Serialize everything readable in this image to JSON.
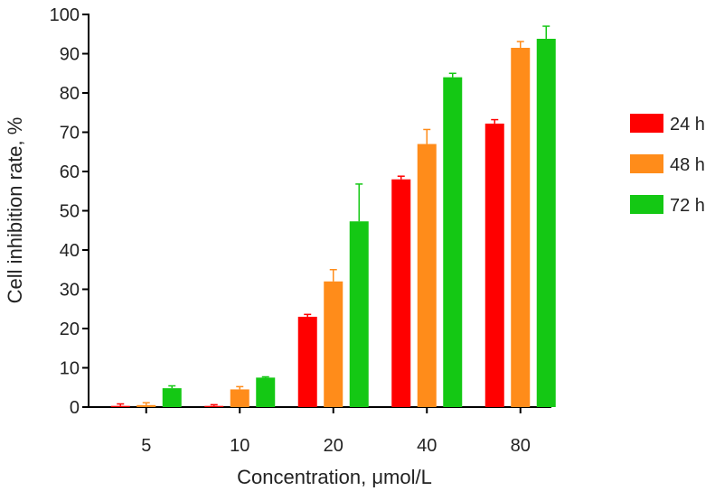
{
  "chart_data": {
    "type": "bar",
    "xlabel": "Concentration, μmol/L",
    "ylabel": "Cell inhibition rate, %",
    "categories": [
      "5",
      "10",
      "20",
      "40",
      "80"
    ],
    "ylim": [
      0,
      100
    ],
    "yticks": [
      0,
      10,
      20,
      30,
      40,
      50,
      60,
      70,
      80,
      90,
      100
    ],
    "grid": false,
    "legend_position": "right",
    "error_bars": true,
    "series": [
      {
        "name": "24 h",
        "color": "#ff0000",
        "values": [
          0.3,
          0.3,
          23.0,
          58.0,
          72.2
        ],
        "errors": [
          0.5,
          0.3,
          0.6,
          0.8,
          1.0
        ]
      },
      {
        "name": "48 h",
        "color": "#ff8c1a",
        "values": [
          0.5,
          4.5,
          32.0,
          67.0,
          91.5
        ],
        "errors": [
          0.6,
          0.7,
          3.0,
          3.7,
          1.6
        ]
      },
      {
        "name": "72 h",
        "color": "#14c814",
        "values": [
          4.8,
          7.5,
          47.3,
          84.0,
          93.8
        ],
        "errors": [
          0.6,
          0.2,
          9.5,
          1.0,
          3.2
        ]
      }
    ]
  }
}
